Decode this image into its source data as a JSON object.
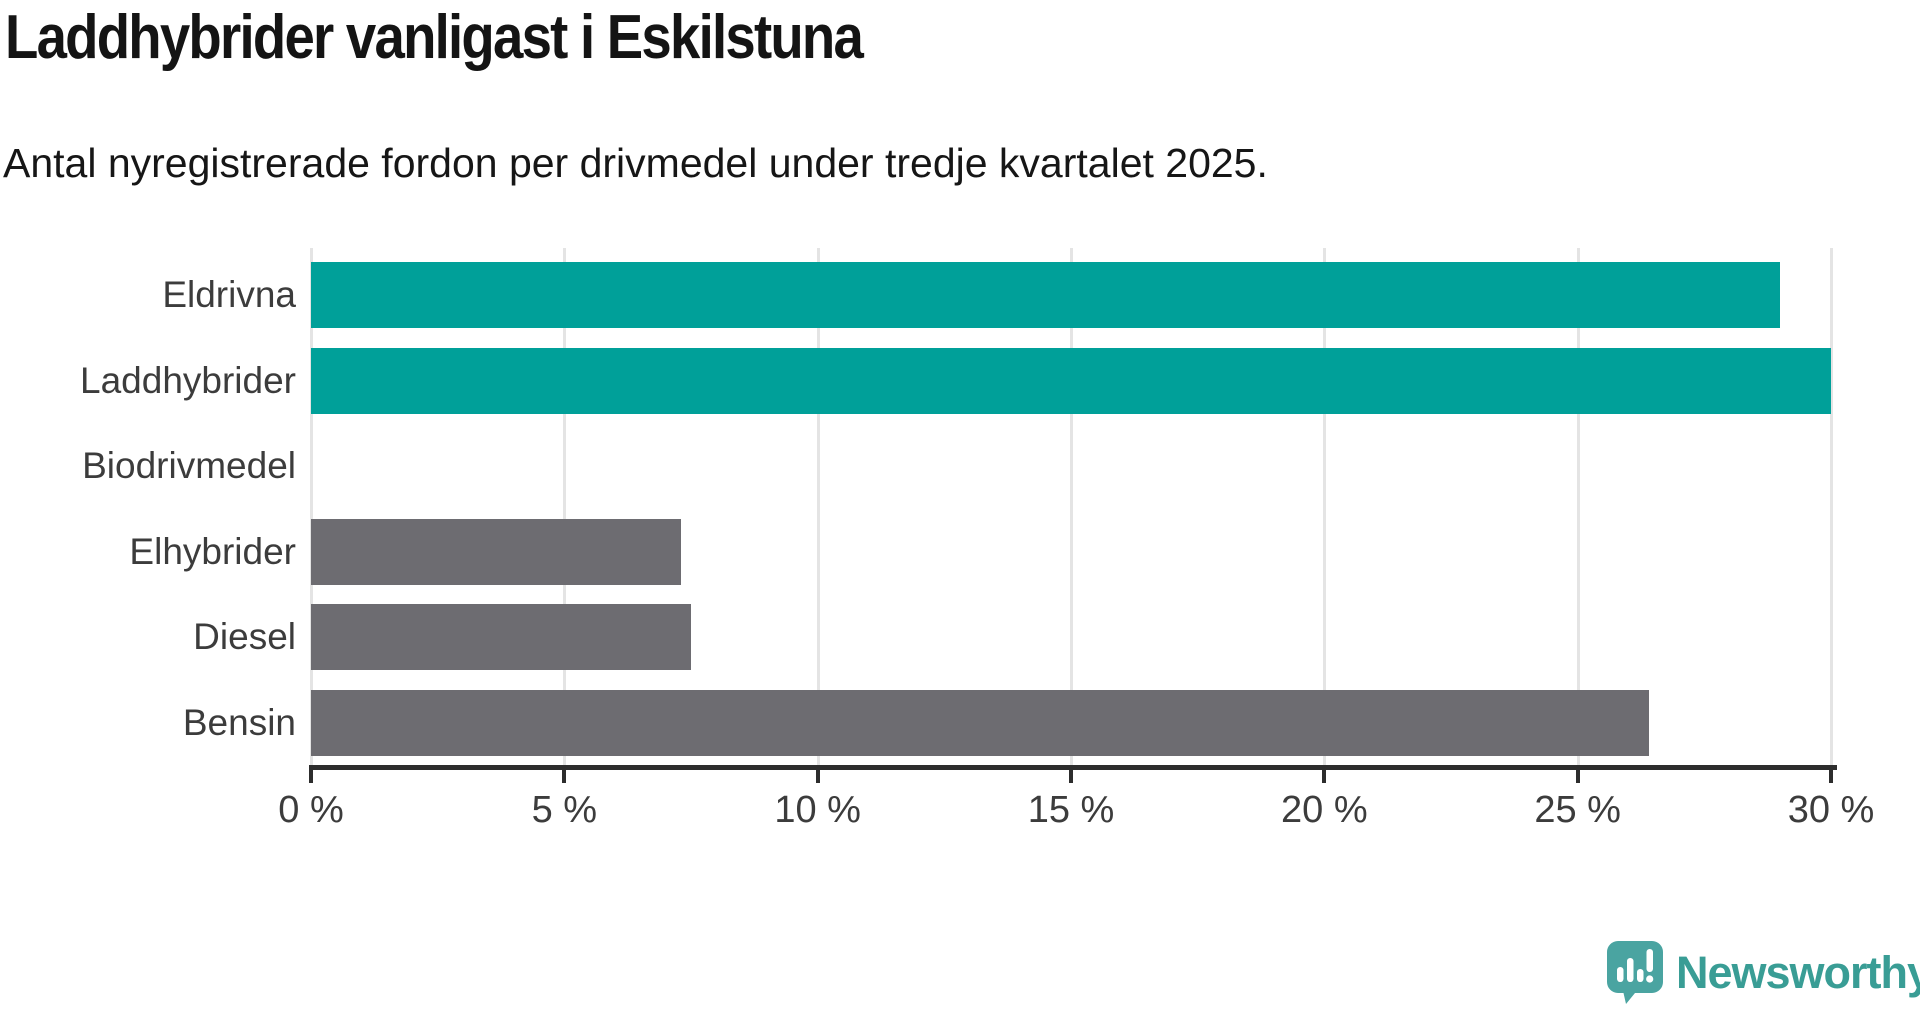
{
  "header": {
    "title": "Laddhybrider vanligast i Eskilstuna",
    "subtitle": "Antal nyregistrerade fordon per drivmedel under tredje kvartalet 2025."
  },
  "branding": {
    "logo_text": "Newsworthy",
    "logo_icon": "newsworthy-speech-bubble-chart-icon",
    "wordmark_color": "#399d95",
    "icon_color": "#4aa4a1"
  },
  "colors": {
    "highlight_bar": "#00a099",
    "default_bar": "#6d6c71",
    "gridline": "#e4e4e4",
    "axis": "#2d2d2d",
    "text": "#161616",
    "label_text": "#3c3c3c"
  },
  "chart_data": {
    "type": "bar",
    "orientation": "horizontal",
    "title": "Laddhybrider vanligast i Eskilstuna",
    "subtitle": "Antal nyregistrerade fordon per drivmedel under tredje kvartalet 2025.",
    "categories": [
      "Eldrivna",
      "Laddhybrider",
      "Biodrivmedel",
      "Elhybrider",
      "Diesel",
      "Bensin"
    ],
    "values": [
      29.0,
      30.0,
      0,
      7.3,
      7.5,
      26.4
    ],
    "unit": "%",
    "bar_colors": [
      "#00a099",
      "#00a099",
      "#6d6c71",
      "#6d6c71",
      "#6d6c71",
      "#6d6c71"
    ],
    "xlabel": "",
    "ylabel": "",
    "xlim": [
      0,
      30
    ],
    "x_ticks": [
      0,
      5,
      10,
      15,
      20,
      25,
      30
    ],
    "x_tick_labels": [
      "0 %",
      "5 %",
      "10 %",
      "15 %",
      "20 %",
      "25 %",
      "30 %"
    ],
    "grid": true,
    "legend": false
  }
}
